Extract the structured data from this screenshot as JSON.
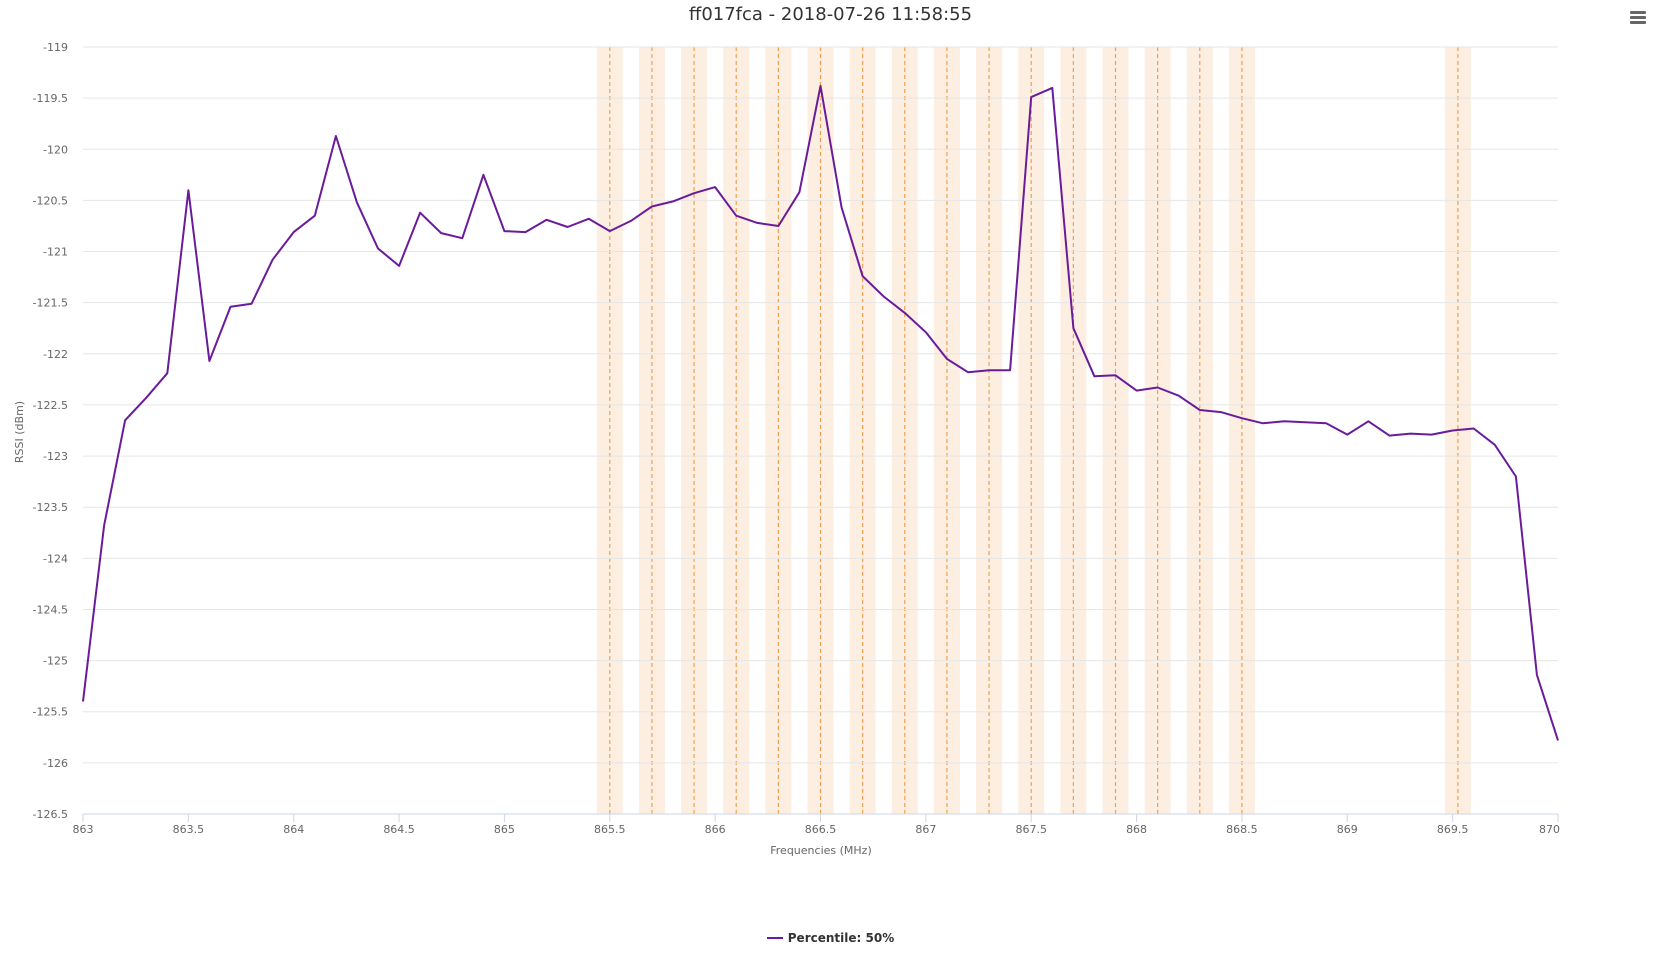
{
  "title": "ff017fca - 2018-07-26 11:58:55",
  "menu": {
    "icon": "hamburger-menu-icon"
  },
  "chart_data": {
    "type": "line",
    "xlabel": "Frequencies (MHz)",
    "ylabel": "RSSI (dBm)",
    "xlim": [
      863,
      870
    ],
    "ylim": [
      -126.5,
      -119
    ],
    "x_ticks": [
      "863",
      "863.5",
      "864",
      "864.5",
      "865",
      "865.5",
      "866",
      "866.5",
      "867",
      "867.5",
      "868",
      "868.5",
      "869",
      "869.5",
      "870"
    ],
    "y_ticks": [
      "-119",
      "-119.5",
      "-120",
      "-120.5",
      "-121",
      "-121.5",
      "-122",
      "-122.5",
      "-123",
      "-123.5",
      "-124",
      "-124.5",
      "-125",
      "-125.5",
      "-126",
      "-126.5"
    ],
    "grid": true,
    "legend_position": "bottom-center",
    "colors": {
      "line": "#6a1b9a",
      "band": "#fdeee2",
      "band_line": "#f0a050",
      "grid": "#e6e6e6",
      "axis": "#ccd6eb"
    },
    "bands": [
      865.5,
      865.7,
      865.9,
      866.1,
      866.3,
      866.5,
      866.7,
      866.9,
      867.1,
      867.3,
      867.5,
      867.7,
      867.9,
      868.1,
      868.3,
      868.5,
      869.525
    ],
    "series": [
      {
        "name": "Percentile: 50%",
        "x": [
          863.0,
          863.1,
          863.2,
          863.3,
          863.4,
          863.5,
          863.6,
          863.7,
          863.8,
          863.9,
          864.0,
          864.1,
          864.2,
          864.3,
          864.4,
          864.5,
          864.6,
          864.7,
          864.8,
          864.9,
          865.0,
          865.1,
          865.2,
          865.3,
          865.4,
          865.5,
          865.6,
          865.7,
          865.8,
          865.9,
          866.0,
          866.1,
          866.2,
          866.3,
          866.4,
          866.5,
          866.6,
          866.7,
          866.8,
          866.9,
          867.0,
          867.1,
          867.2,
          867.3,
          867.4,
          867.5,
          867.6,
          867.7,
          867.8,
          867.9,
          868.0,
          868.1,
          868.2,
          868.3,
          868.4,
          868.5,
          868.6,
          868.7,
          868.8,
          868.9,
          869.0,
          869.1,
          869.2,
          869.3,
          869.4,
          869.5,
          869.6,
          869.7,
          869.8,
          869.9,
          870.0
        ],
        "values": [
          -125.4,
          -123.68,
          -122.65,
          -122.43,
          -122.19,
          -120.4,
          -122.07,
          -121.54,
          -121.51,
          -121.08,
          -120.81,
          -120.65,
          -119.87,
          -120.52,
          -120.97,
          -121.14,
          -120.62,
          -120.82,
          -120.87,
          -120.25,
          -120.8,
          -120.81,
          -120.69,
          -120.76,
          -120.68,
          -120.8,
          -120.7,
          -120.56,
          -120.51,
          -120.43,
          -120.37,
          -120.65,
          -120.72,
          -120.75,
          -120.42,
          -119.38,
          -120.57,
          -121.24,
          -121.44,
          -121.6,
          -121.79,
          -122.05,
          -122.18,
          -122.16,
          -122.16,
          -119.49,
          -119.4,
          -121.75,
          -122.22,
          -122.21,
          -122.36,
          -122.33,
          -122.41,
          -122.55,
          -122.57,
          -122.63,
          -122.68,
          -122.66,
          -122.67,
          -122.68,
          -122.79,
          -122.66,
          -122.8,
          -122.78,
          -122.79,
          -122.75,
          -122.73,
          -122.89,
          -123.2,
          -125.14,
          -125.78
        ]
      }
    ]
  }
}
